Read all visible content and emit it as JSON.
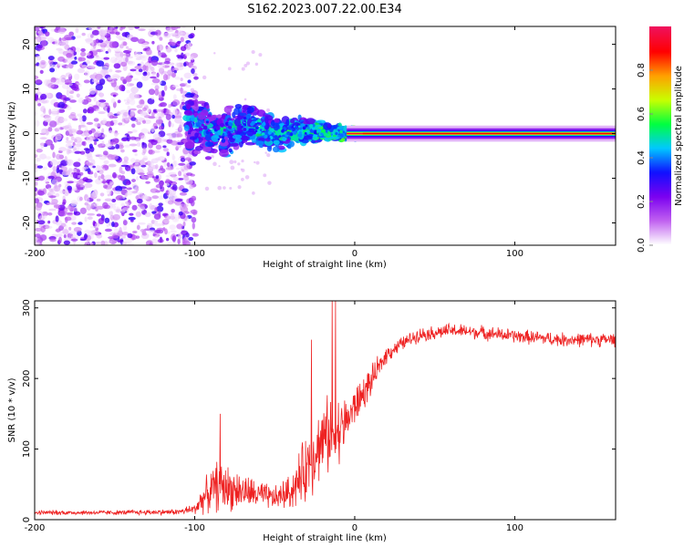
{
  "title": "S162.2023.007.22.00.E34",
  "chart_data": [
    {
      "type": "heatmap",
      "xlabel": "Height of straight line (km)",
      "ylabel": "Frequency (Hz)",
      "xlim": [
        -200,
        163
      ],
      "ylim": [
        -25,
        24
      ],
      "x_ticks": [
        -200,
        -100,
        0,
        100
      ],
      "y_ticks": [
        -20,
        -10,
        0,
        10,
        20
      ],
      "colorbar": {
        "label": "Normalized spectral amplitude",
        "range": [
          0.0,
          1.0
        ],
        "ticks": [
          0.0,
          0.2,
          0.4,
          0.6,
          0.8
        ],
        "colors": [
          "#ffffff",
          "#c060f0",
          "#7a00f0",
          "#1010ff",
          "#00c8ff",
          "#00ff40",
          "#c8ff00",
          "#ffa000",
          "#ff0000",
          "#f0105a"
        ]
      },
      "structure": {
        "carrier_line": {
          "frequency_hz": 0,
          "x_start_km": 10,
          "x_end_km": 163,
          "amplitude": 0.95
        },
        "noise_region": {
          "x_start_km": -200,
          "x_end_km": -105,
          "frequency_spread_hz": [
            -25,
            24
          ],
          "amplitude": 0.1
        },
        "transition_region": {
          "x_start_km": -105,
          "x_end_km": 10,
          "frequency_spread_hz": [
            -6,
            7
          ],
          "amplitude": 0.35
        }
      },
      "grid": false
    },
    {
      "type": "line",
      "xlabel": "Height of straight line (km)",
      "ylabel": "SNR (10 * v/v)",
      "xlim": [
        -200,
        163
      ],
      "ylim": [
        0,
        310
      ],
      "x_ticks": [
        -200,
        -100,
        0,
        100
      ],
      "y_ticks": [
        0,
        100,
        200,
        300
      ],
      "line_color": "#ee2222",
      "series_envelope": {
        "x": [
          -200,
          -150,
          -110,
          -100,
          -95,
          -90,
          -85,
          -80,
          -70,
          -60,
          -50,
          -40,
          -35,
          -30,
          -25,
          -20,
          -15,
          -10,
          -5,
          0,
          10,
          20,
          30,
          40,
          60,
          80,
          100,
          130,
          163
        ],
        "mean": [
          10,
          10,
          11,
          15,
          30,
          40,
          50,
          45,
          40,
          35,
          30,
          40,
          55,
          75,
          95,
          115,
          120,
          125,
          140,
          160,
          195,
          235,
          250,
          262,
          268,
          265,
          260,
          255,
          255
        ],
        "amplitude": [
          4,
          4,
          5,
          10,
          25,
          35,
          45,
          40,
          30,
          25,
          20,
          30,
          45,
          60,
          65,
          60,
          70,
          60,
          40,
          35,
          25,
          15,
          12,
          12,
          12,
          12,
          12,
          12,
          12
        ]
      },
      "peaks": [
        {
          "x": -84,
          "y": 150
        },
        {
          "x": -14,
          "y": 310
        },
        {
          "x": -12,
          "y": 310
        },
        {
          "x": -27,
          "y": 255
        }
      ],
      "grid": false
    }
  ]
}
